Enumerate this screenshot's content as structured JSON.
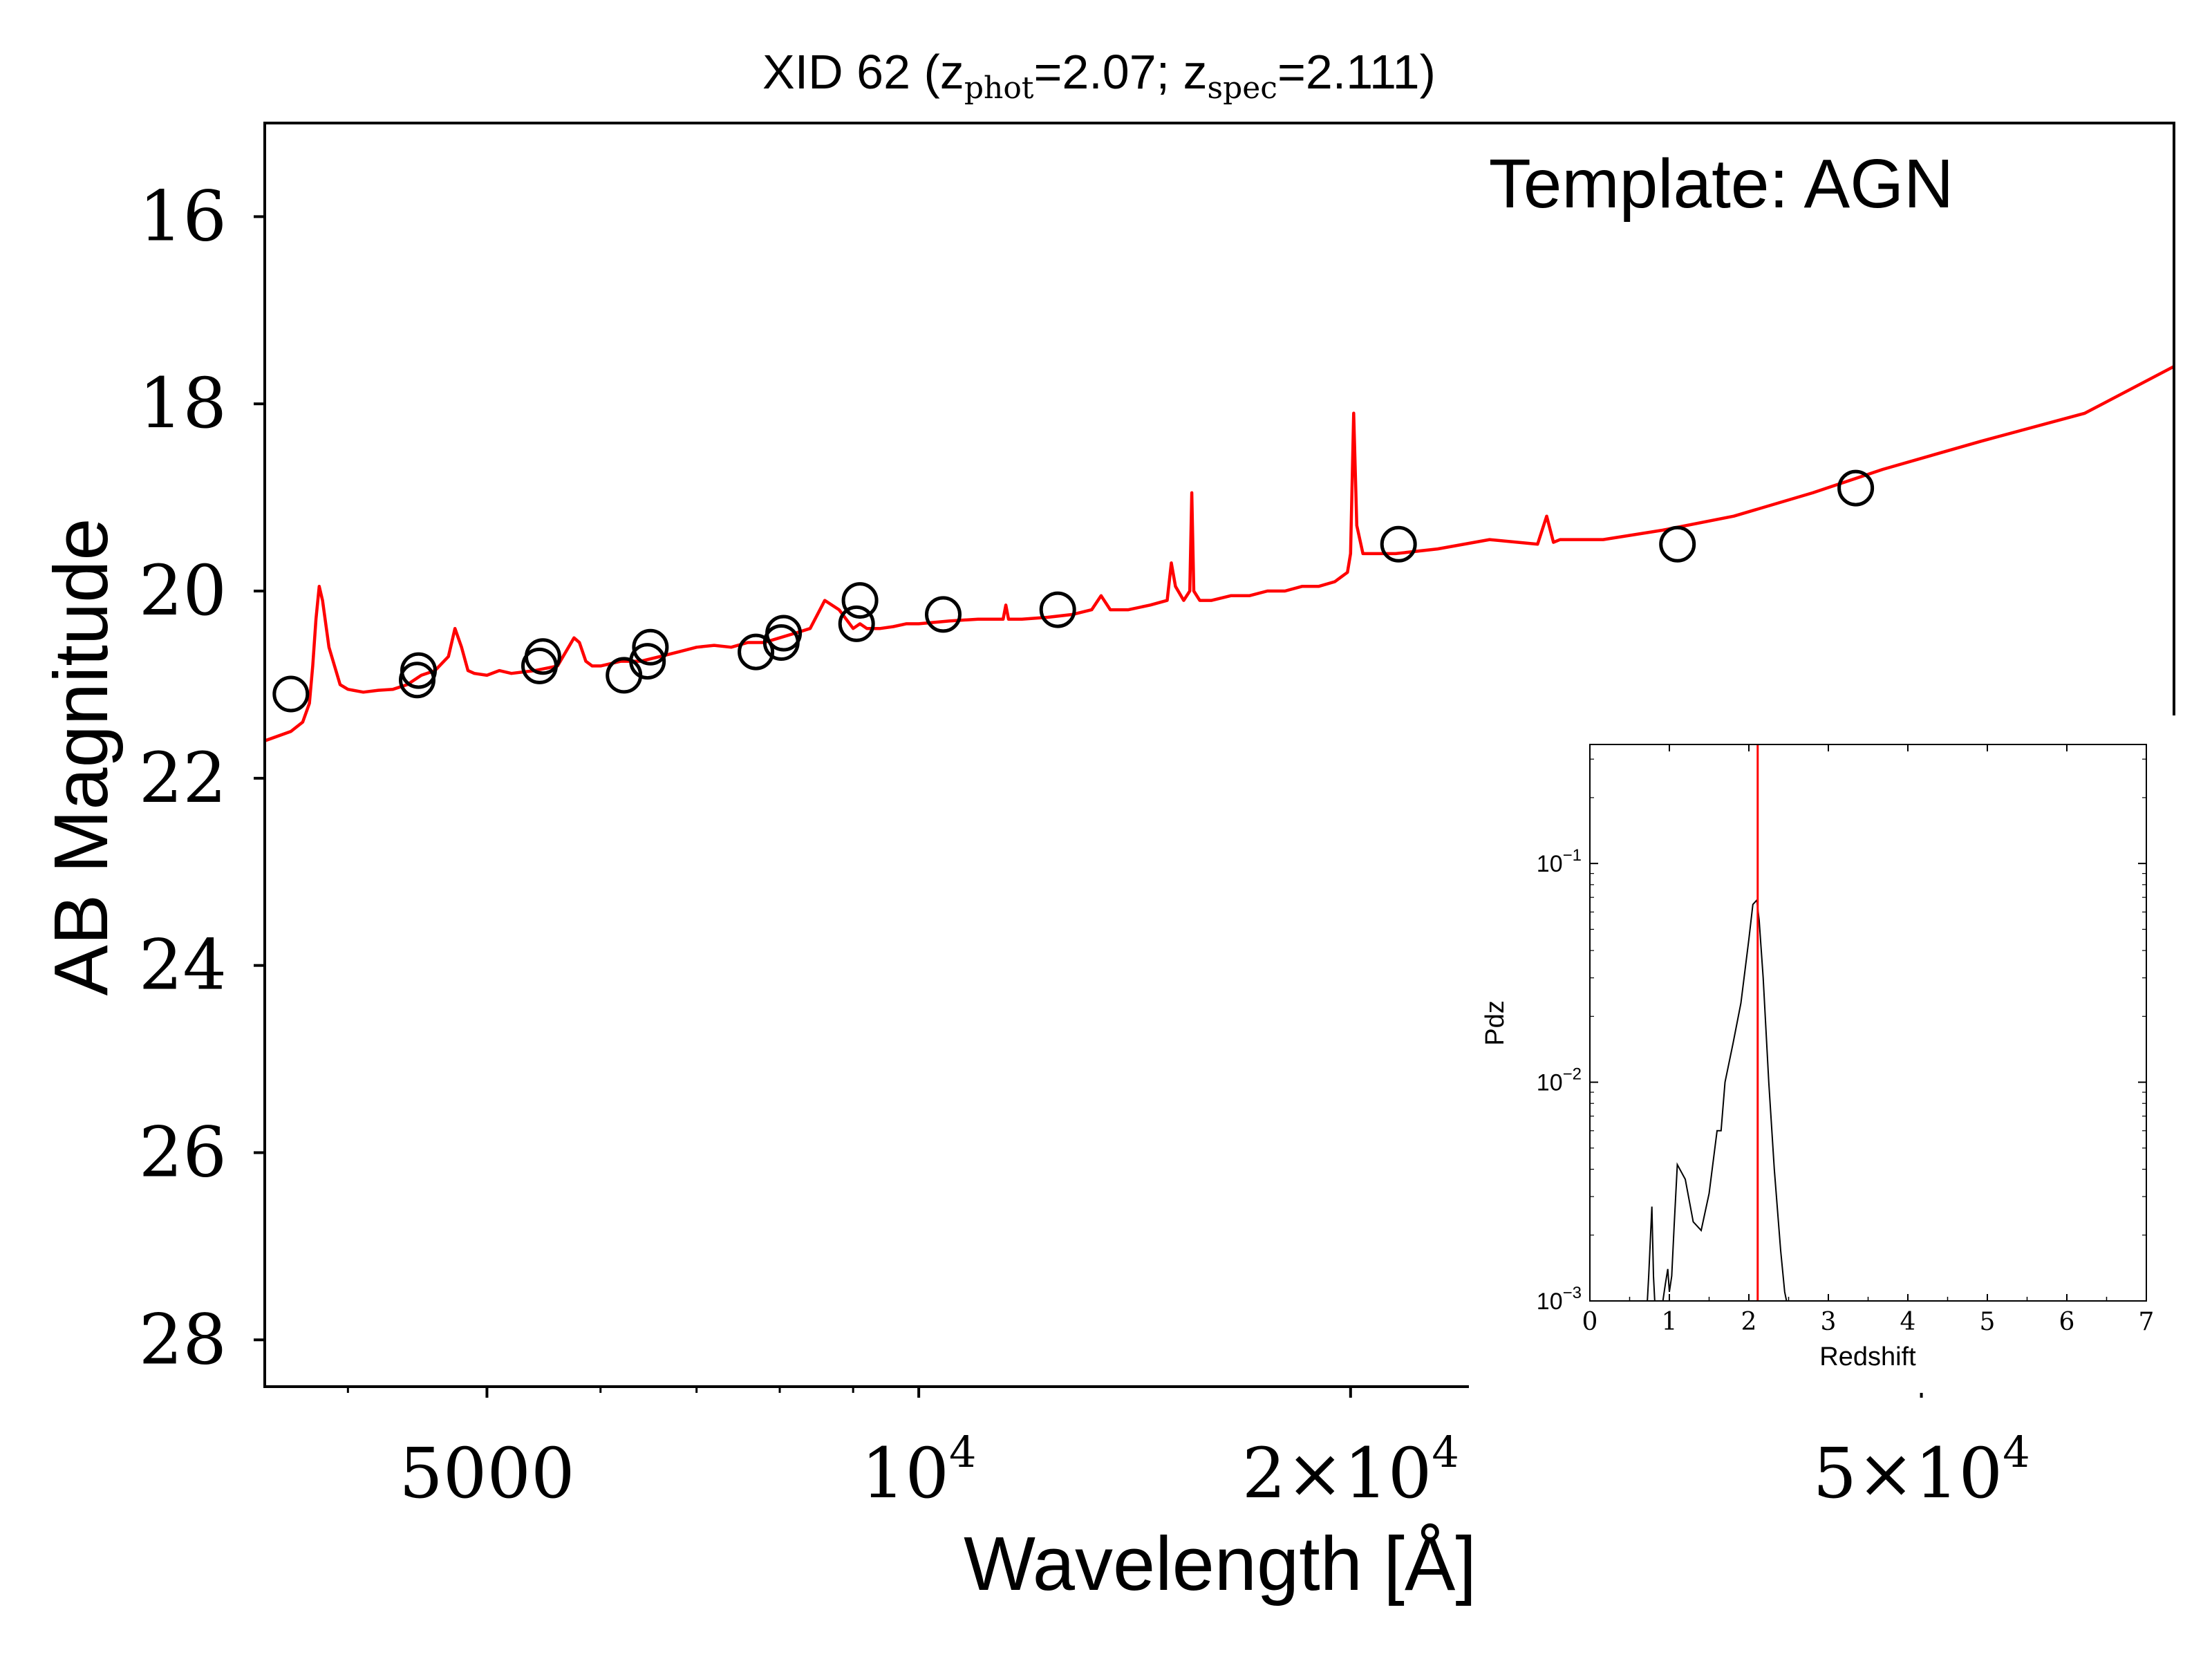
{
  "chart_data": [
    {
      "type": "line",
      "title": {
        "main": "XID 62 (z",
        "sub1": "phot",
        "mid": "=2.07; z",
        "sub2": "spec",
        "end": "=2.111)"
      },
      "annotation": "Template: AGN",
      "xlabel": "Wavelength [Å]",
      "ylabel": "AB Magnitude",
      "xscale": "log",
      "xlim": [
        3500,
        75000
      ],
      "ylim": [
        28.5,
        15
      ],
      "y_inverted": true,
      "xticks": [
        {
          "value": 5000,
          "base": "5000",
          "exp": ""
        },
        {
          "value": 10000,
          "base": "10",
          "exp": "4"
        },
        {
          "value": 20000,
          "base": "2×10",
          "exp": "4"
        },
        {
          "value": 50000,
          "base": "5×10",
          "exp": "4"
        }
      ],
      "yticks": [
        "16",
        "18",
        "20",
        "22",
        "24",
        "26",
        "28"
      ],
      "colors": {
        "model": "#ff0000",
        "photometry": "#000000",
        "axes": "#000000"
      },
      "series": [
        {
          "kind": "model-spectrum",
          "x": [
            3500,
            3650,
            3720,
            3760,
            3780,
            3800,
            3820,
            3840,
            3880,
            3950,
            4000,
            4100,
            4200,
            4300,
            4400,
            4500,
            4600,
            4700,
            4750,
            4800,
            4850,
            4900,
            5000,
            5100,
            5200,
            5400,
            5600,
            5750,
            5800,
            5860,
            5920,
            6000,
            6200,
            6400,
            6600,
            6800,
            7000,
            7200,
            7400,
            7600,
            7800,
            8000,
            8200,
            8400,
            8600,
            8800,
            8900,
            9000,
            9100,
            9200,
            9400,
            9600,
            9800,
            10000,
            10500,
            11000,
            11450,
            11500,
            11550,
            11800,
            12300,
            12800,
            13200,
            13400,
            13600,
            14000,
            14500,
            14900,
            15000,
            15100,
            15300,
            15450,
            15500,
            15550,
            15700,
            16000,
            16500,
            17000,
            17500,
            18000,
            18500,
            19000,
            19500,
            19700,
            19900,
            20000,
            20100,
            20200,
            20400,
            20800,
            21500,
            23000,
            25000,
            27000,
            27400,
            27700,
            28000,
            30000,
            33000,
            37000,
            42000,
            47000,
            55000,
            65000,
            75000
          ],
          "y": [
            21.6,
            21.5,
            21.4,
            21.2,
            20.8,
            20.3,
            19.95,
            20.1,
            20.6,
            21.0,
            21.05,
            21.08,
            21.06,
            21.05,
            21.0,
            20.9,
            20.85,
            20.7,
            20.4,
            20.6,
            20.85,
            20.88,
            20.9,
            20.85,
            20.88,
            20.85,
            20.8,
            20.5,
            20.55,
            20.75,
            20.8,
            20.8,
            20.75,
            20.75,
            20.7,
            20.65,
            20.6,
            20.58,
            20.6,
            20.55,
            20.55,
            20.5,
            20.45,
            20.4,
            20.1,
            20.2,
            20.3,
            20.4,
            20.35,
            20.4,
            20.4,
            20.38,
            20.35,
            20.35,
            20.32,
            20.3,
            20.3,
            20.15,
            20.3,
            20.3,
            20.28,
            20.25,
            20.2,
            20.05,
            20.2,
            20.2,
            20.15,
            20.1,
            19.7,
            19.95,
            20.1,
            20.0,
            18.95,
            20.0,
            20.1,
            20.1,
            20.05,
            20.05,
            20.0,
            20.0,
            19.95,
            19.95,
            19.9,
            19.85,
            19.8,
            19.6,
            18.1,
            19.3,
            19.6,
            19.6,
            19.6,
            19.55,
            19.45,
            19.5,
            19.2,
            19.48,
            19.45,
            19.45,
            19.35,
            19.2,
            18.95,
            18.7,
            18.4,
            18.1,
            17.6
          ]
        },
        {
          "kind": "photometry",
          "x": [
            3650,
            4470,
            4480,
            5440,
            5470,
            6230,
            6470,
            6500,
            7700,
            8020,
            8050,
            9050,
            9100,
            10400,
            12500,
            21600,
            33800,
            45000
          ],
          "y": [
            21.1,
            20.95,
            20.85,
            20.8,
            20.7,
            20.9,
            20.75,
            20.6,
            20.65,
            20.55,
            20.45,
            20.35,
            20.1,
            20.25,
            20.2,
            19.5,
            19.5,
            18.9
          ]
        }
      ]
    },
    {
      "type": "line",
      "xlabel": "Redshift",
      "ylabel": "Pdz",
      "xscale": "linear",
      "yscale": "log",
      "xlim": [
        0,
        7
      ],
      "ylim": [
        0.001,
        0.35
      ],
      "xticks": [
        "0",
        "1",
        "2",
        "3",
        "4",
        "5",
        "6",
        "7"
      ],
      "yticks": [
        {
          "value": 0.1,
          "base": "10",
          "exp": "−1"
        },
        {
          "value": 0.01,
          "base": "10",
          "exp": "−2"
        },
        {
          "value": 0.001,
          "base": "10",
          "exp": "−3"
        }
      ],
      "vline": 2.111,
      "colors": {
        "pdz": "#000000",
        "vline": "#ff0000"
      },
      "series": [
        {
          "kind": "pdz",
          "x": [
            0.7,
            0.74,
            0.78,
            0.8,
            0.83,
            0.86,
            0.9,
            0.95,
            0.98,
            1.0,
            1.03,
            1.06,
            1.1,
            1.2,
            1.3,
            1.4,
            1.5,
            1.6,
            1.65,
            1.7,
            1.8,
            1.9,
            2.0,
            2.05,
            2.1,
            2.13,
            2.18,
            2.25,
            2.32,
            2.4,
            2.45,
            2.5,
            2.55
          ],
          "y": [
            0.0007,
            0.0013,
            0.0027,
            0.0013,
            0.0008,
            0.0007,
            0.0009,
            0.0012,
            0.0014,
            0.0011,
            0.0013,
            0.0022,
            0.0042,
            0.0036,
            0.0023,
            0.0021,
            0.0031,
            0.006,
            0.006,
            0.01,
            0.015,
            0.023,
            0.045,
            0.065,
            0.068,
            0.055,
            0.03,
            0.01,
            0.004,
            0.0017,
            0.0011,
            0.0009,
            0.0007
          ]
        }
      ]
    }
  ]
}
